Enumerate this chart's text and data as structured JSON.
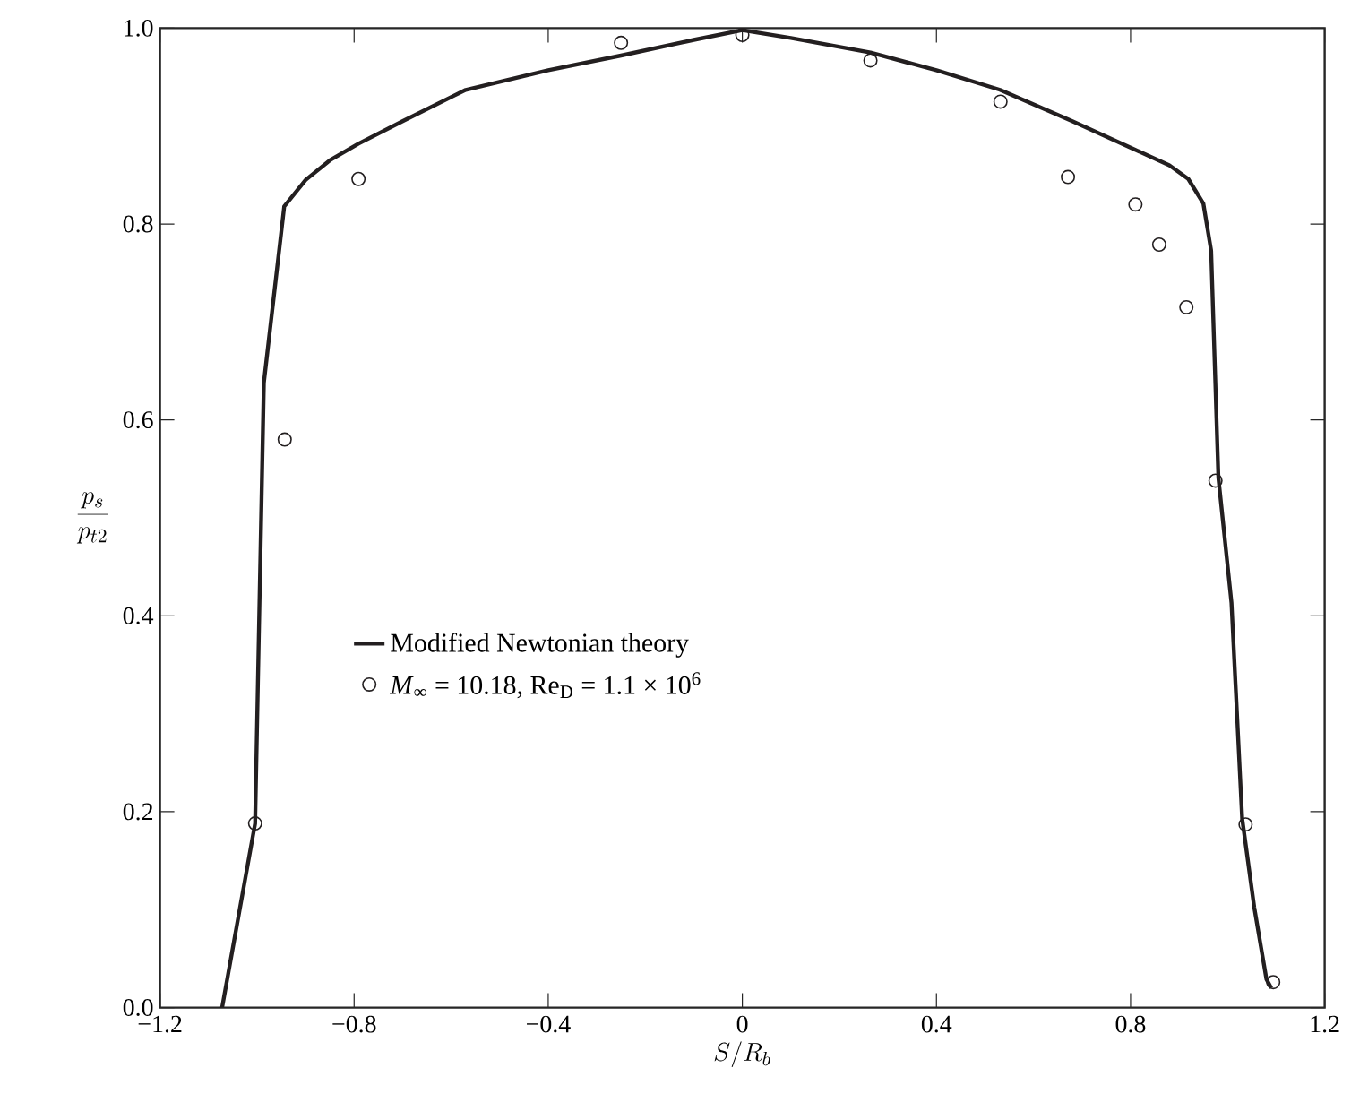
{
  "chart_data": {
    "type": "line",
    "xlabel": "S/R_b",
    "ylabel": "\\frac{p_s}{p_{t2}}",
    "xlim": [
      -1.2,
      1.2
    ],
    "ylim": [
      0.0,
      1.0
    ],
    "xticks": [
      {
        "value": -1.2,
        "label": "−1.2"
      },
      {
        "value": -0.8,
        "label": "−0.8"
      },
      {
        "value": -0.4,
        "label": "−0.4"
      },
      0,
      0.4,
      0.8,
      1.2
    ],
    "yticks": [
      {
        "value": 0.0,
        "label": "0.0"
      },
      {
        "value": 0.2,
        "label": "0.2"
      },
      {
        "value": 0.4,
        "label": "0.4"
      },
      {
        "value": 0.6,
        "label": "0.6"
      },
      {
        "value": 0.8,
        "label": "0.8"
      },
      {
        "value": 1.0,
        "label": "1.0"
      }
    ],
    "legend": "left",
    "series": [
      {
        "name": "Modified Newtonian theory",
        "color": "#231f20",
        "x": [
          -1.072,
          -1.004,
          -0.986,
          -0.944,
          -0.9,
          -0.85,
          -0.791,
          -0.7,
          -0.57,
          -0.4,
          -0.25,
          -0.1,
          0,
          0.1,
          0.264,
          0.4,
          0.531,
          0.68,
          0.809,
          0.88,
          0.919,
          0.95,
          0.966,
          0.981,
          1.008,
          1.03,
          1.055,
          1.08,
          1.09
        ],
        "values": [
          0.0,
          0.188,
          0.638,
          0.818,
          0.845,
          0.865,
          0.882,
          0.905,
          0.937,
          0.957,
          0.972,
          0.988,
          0.998,
          0.99,
          0.975,
          0.957,
          0.937,
          0.905,
          0.876,
          0.86,
          0.846,
          0.821,
          0.773,
          0.541,
          0.413,
          0.193,
          0.102,
          0.029,
          0.02
        ]
      },
      {
        "name": "*M*$_{∞}$ = 10.18, Re$_{D}$ = 1.1 × 10$^{6}$",
        "type": "scatter",
        "marker": "circle",
        "color": "#231f20",
        "x": [
          -1.004,
          -0.943,
          -0.791,
          -0.25,
          0.0,
          0.264,
          0.532,
          0.671,
          0.81,
          0.859,
          0.915,
          0.975,
          1.037,
          1.094
        ],
        "values": [
          0.188,
          0.58,
          0.846,
          0.985,
          0.993,
          0.967,
          0.925,
          0.848,
          0.82,
          0.779,
          0.715,
          0.538,
          0.187,
          0.026
        ]
      }
    ]
  }
}
